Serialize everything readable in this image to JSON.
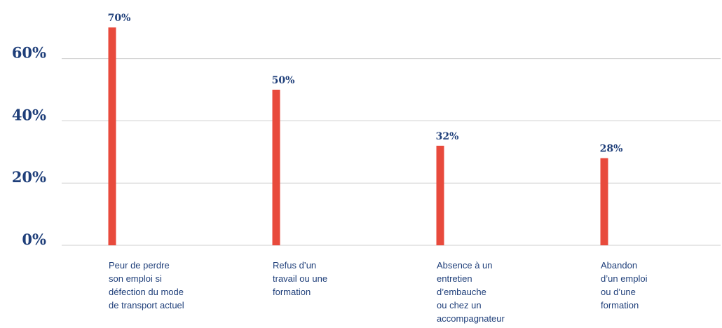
{
  "chart_data": {
    "type": "bar",
    "categories": [
      [
        "Peur de perdre",
        "son emploi si",
        "défection du mode",
        "de transport actuel"
      ],
      [
        "Refus d’un",
        "travail ou une",
        "formation"
      ],
      [
        "Absence à un",
        "entretien",
        "d’embauche",
        "ou chez un",
        "accompagnateur"
      ],
      [
        "Abandon",
        "d’un emploi",
        "ou d’une",
        "formation"
      ]
    ],
    "values": [
      70,
      50,
      32,
      28
    ],
    "data_labels": [
      "70%",
      "50%",
      "32%",
      "28%"
    ],
    "yticks": [
      {
        "value": 0,
        "label": "0%"
      },
      {
        "value": 20,
        "label": "20%"
      },
      {
        "value": 40,
        "label": "40%"
      },
      {
        "value": 60,
        "label": "60%"
      }
    ],
    "ylim": [
      0,
      75
    ],
    "grid": true,
    "colors": {
      "bar": "#e84a3c",
      "text": "#1f3f7a",
      "grid": "#cfcfcf"
    }
  }
}
